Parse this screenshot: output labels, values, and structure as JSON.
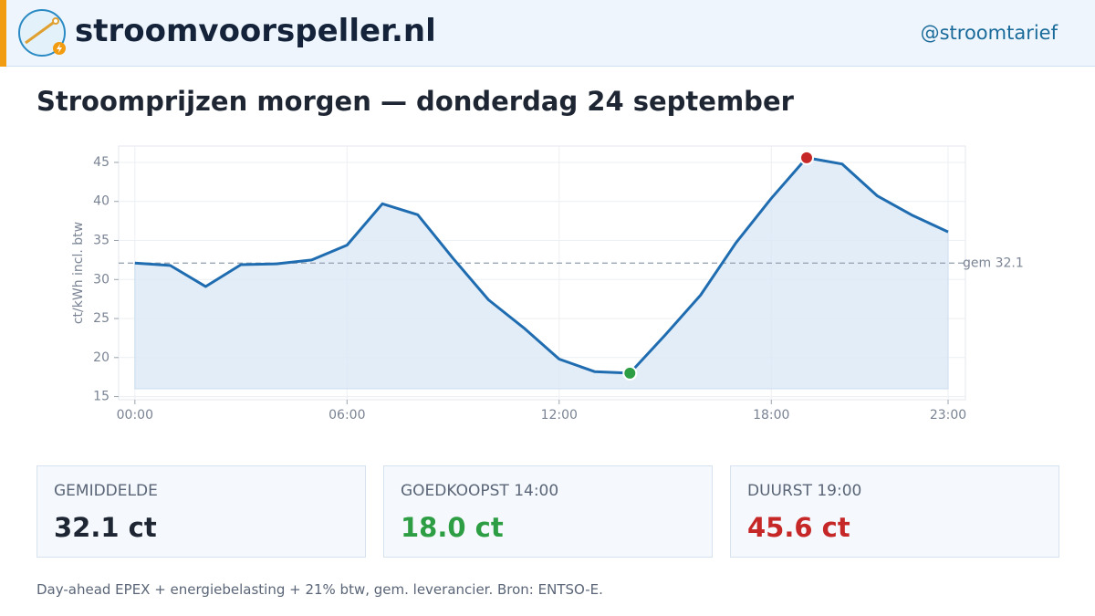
{
  "header": {
    "site": "stroomvoorspeller.nl",
    "handle": "@stroomtarief"
  },
  "title": "Stroomprijzen morgen — donderdag 24 september",
  "chart_data": {
    "type": "line",
    "y_label": "ct/kWh incl. btw",
    "x": [
      0,
      1,
      2,
      3,
      4,
      5,
      6,
      7,
      8,
      9,
      10,
      11,
      12,
      13,
      14,
      15,
      16,
      17,
      18,
      19,
      20,
      21,
      22,
      23
    ],
    "series": [
      {
        "color": "#1f6db0",
        "values": [
          32.1,
          31.8,
          29.1,
          31.9,
          32.0,
          32.5,
          34.4,
          39.7,
          38.3,
          32.7,
          27.4,
          23.8,
          19.8,
          18.2,
          18.0,
          22.9,
          28.0,
          34.7,
          40.4,
          45.6,
          44.8,
          40.7,
          38.2,
          36.1
        ]
      }
    ],
    "area_color": "#dce9f6",
    "min_color": "#2e9e44",
    "max_color": "#c62828",
    "xlim": [
      -0.46,
      23.49
    ],
    "xticks": [
      {
        "value": 0,
        "label": "00:00"
      },
      {
        "value": 6,
        "label": "06:00"
      },
      {
        "value": 12,
        "label": "12:00"
      },
      {
        "value": 18,
        "label": "18:00"
      },
      {
        "value": 23,
        "label": "23:00"
      }
    ],
    "ylim": [
      14.6,
      47.1
    ],
    "yticks": [
      15,
      20,
      25,
      30,
      35,
      40,
      45
    ],
    "grid": true,
    "reference_line": {
      "value": 32.1,
      "label": "gem 32.1"
    }
  },
  "stats": [
    {
      "label": "GEMIDDELDE",
      "value": "32.1 ct"
    },
    {
      "label": "GOEDKOOPST 14:00",
      "value": "18.0 ct"
    },
    {
      "label": "DUURST 19:00",
      "value": "45.6 ct"
    }
  ],
  "footnote": "Day-ahead EPEX + energiebelasting + 21% btw, gem. leverancier. Bron: ENTSO-E."
}
